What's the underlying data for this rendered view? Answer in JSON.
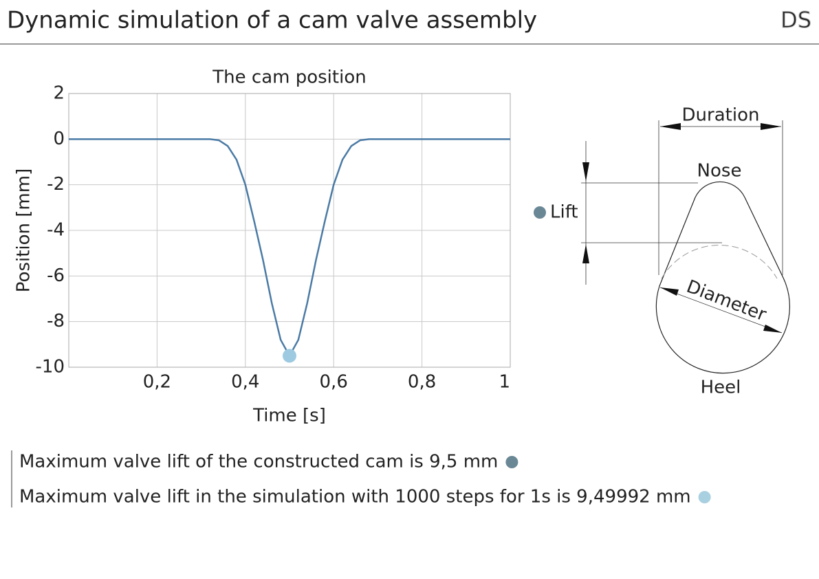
{
  "header": {
    "title": "Dynamic simulation of a cam valve assembly",
    "logo": "DS"
  },
  "chart_data": {
    "type": "line",
    "title": "The cam position",
    "x_label": "Time [s]",
    "y_label": "Position [mm]",
    "x": [
      0,
      0.1,
      0.2,
      0.3,
      0.32,
      0.34,
      0.36,
      0.38,
      0.4,
      0.42,
      0.44,
      0.46,
      0.48,
      0.5,
      0.52,
      0.54,
      0.56,
      0.58,
      0.6,
      0.62,
      0.64,
      0.66,
      0.68,
      0.7,
      0.8,
      0.9,
      1
    ],
    "series": [
      {
        "color": "#4a7aa5",
        "values": [
          0,
          0,
          0,
          0,
          0,
          -0.05,
          -0.3,
          -0.9,
          -2.0,
          -3.6,
          -5.3,
          -7.2,
          -8.8,
          -9.5,
          -8.8,
          -7.2,
          -5.3,
          -3.6,
          -2.0,
          -0.9,
          -0.3,
          -0.05,
          0,
          0,
          0,
          0,
          0
        ]
      }
    ],
    "highlight": {
      "x": 0.5,
      "y": -9.5,
      "color": "#9ecae1"
    },
    "xlim": [
      0,
      1
    ],
    "ylim": [
      -10,
      2
    ],
    "xticks": [
      {
        "value": 0.2,
        "label": "0,2"
      },
      {
        "value": 0.4,
        "label": "0,4"
      },
      {
        "value": 0.6,
        "label": "0,6"
      },
      {
        "value": 0.8,
        "label": "0,8"
      },
      1
    ],
    "yticks": [
      -10,
      -8,
      -6,
      -4,
      -2,
      0,
      2
    ],
    "grid": true
  },
  "diagram": {
    "duration": "Duration",
    "nose": "Nose",
    "lift": "Lift",
    "lift_color": "#6a8796",
    "diameter": "Diameter",
    "heel": "Heel"
  },
  "notes": [
    {
      "text": "Maximum valve lift of the constructed cam is 9,5 mm",
      "color": "#6a8796"
    },
    {
      "text": "Maximum valve lift in the simulation with 1000 steps for 1s is 9,49992 mm",
      "color": "#a9d0e0"
    }
  ]
}
